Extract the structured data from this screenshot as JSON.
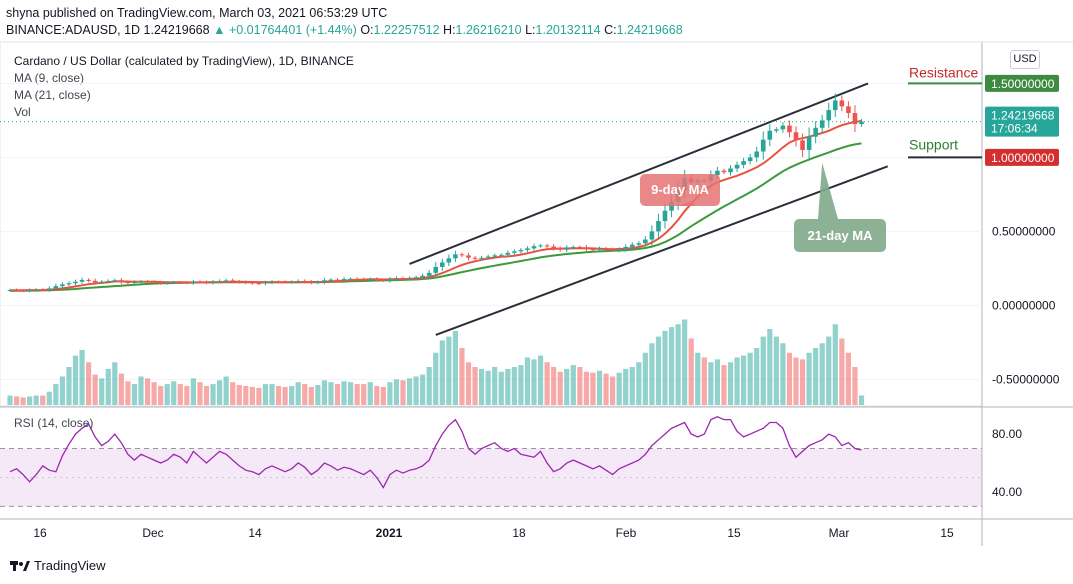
{
  "header": {
    "published": "shyna published on TradingView.com, March 03, 2021 06:53:29 UTC",
    "symbol": "BINANCE:ADAUSD, 1D",
    "last": "1.24219668",
    "change": "+0.01764401 (+1.44%)",
    "o_label": "O:",
    "o_value": "1.22257512",
    "h_label": "H:",
    "h_value": "1.26216210",
    "l_label": "L:",
    "l_value": "1.20132114",
    "c_label": "C:",
    "c_value": "1.24219668"
  },
  "legend": {
    "title": "Cardano / US Dollar (calculated by TradingView), 1D, BINANCE",
    "ma9": "MA (9, close)",
    "ma21": "MA (21, close)",
    "vol": "Vol"
  },
  "currency_button": "USD",
  "annotations": {
    "resistance": "Resistance",
    "support": "Support",
    "ma9_callout": "9-day MA",
    "ma21_callout": "21-day MA"
  },
  "price_labels": {
    "resistance_value": "1.50000000",
    "current_value": "1.24219668",
    "countdown": "17:06:34",
    "support_value": "1.00000000"
  },
  "rsi": {
    "label": "RSI (14, close)"
  },
  "brand": "TradingView",
  "colors": {
    "up": "#26a69a",
    "down": "#ef5350",
    "ma9": "#e8533f",
    "ma21": "#3c9a3c",
    "rsi": "#9c27b0",
    "rsi_band": "#9c27b0",
    "resistance": "#3d8b40",
    "support": "#d32f2f",
    "callout_red": "#e57373",
    "callout_green": "#81a98a"
  },
  "chart_data": [
    {
      "type": "candlestick",
      "title": "Cardano / US Dollar (calculated by TradingView), 1D, BINANCE",
      "x_ticks": [
        "16",
        "Dec",
        "14",
        "2021",
        "18",
        "Feb",
        "15",
        "Mar",
        "15"
      ],
      "y_ticks": [
        "0.50000000",
        "0.00000000",
        "-0.50000000"
      ],
      "ylim": [
        -0.68,
        1.78
      ],
      "resistance_level": 1.5,
      "support_level": 1.0,
      "last_price": 1.24219668,
      "closes": [
        0.104,
        0.101,
        0.099,
        0.104,
        0.107,
        0.106,
        0.115,
        0.13,
        0.142,
        0.15,
        0.16,
        0.172,
        0.166,
        0.155,
        0.16,
        0.165,
        0.17,
        0.158,
        0.152,
        0.158,
        0.162,
        0.159,
        0.155,
        0.15,
        0.153,
        0.156,
        0.155,
        0.152,
        0.16,
        0.158,
        0.154,
        0.16,
        0.165,
        0.169,
        0.162,
        0.158,
        0.154,
        0.15,
        0.148,
        0.155,
        0.16,
        0.159,
        0.157,
        0.16,
        0.165,
        0.16,
        0.154,
        0.158,
        0.17,
        0.174,
        0.172,
        0.178,
        0.18,
        0.178,
        0.175,
        0.178,
        0.172,
        0.168,
        0.178,
        0.185,
        0.182,
        0.186,
        0.19,
        0.2,
        0.22,
        0.26,
        0.29,
        0.318,
        0.345,
        0.338,
        0.322,
        0.315,
        0.322,
        0.33,
        0.338,
        0.342,
        0.355,
        0.365,
        0.374,
        0.385,
        0.4,
        0.405,
        0.398,
        0.385,
        0.376,
        0.39,
        0.395,
        0.392,
        0.38,
        0.376,
        0.384,
        0.378,
        0.372,
        0.38,
        0.395,
        0.41,
        0.42,
        0.445,
        0.5,
        0.57,
        0.64,
        0.7,
        0.78,
        0.86,
        0.83,
        0.845,
        0.84,
        0.88,
        0.91,
        0.9,
        0.925,
        0.95,
        0.975,
        1.0,
        1.04,
        1.12,
        1.18,
        1.19,
        1.215,
        1.17,
        1.115,
        1.05,
        1.14,
        1.2,
        1.25,
        1.32,
        1.385,
        1.345,
        1.3,
        1.225,
        1.242
      ],
      "ma9": [
        0.101,
        0.102,
        0.102,
        0.103,
        0.103,
        0.104,
        0.106,
        0.11,
        0.115,
        0.121,
        0.128,
        0.136,
        0.143,
        0.148,
        0.152,
        0.157,
        0.162,
        0.162,
        0.161,
        0.16,
        0.16,
        0.16,
        0.16,
        0.158,
        0.156,
        0.156,
        0.156,
        0.155,
        0.155,
        0.155,
        0.155,
        0.155,
        0.157,
        0.159,
        0.16,
        0.16,
        0.159,
        0.158,
        0.157,
        0.157,
        0.157,
        0.157,
        0.156,
        0.156,
        0.157,
        0.158,
        0.158,
        0.158,
        0.159,
        0.162,
        0.164,
        0.167,
        0.17,
        0.172,
        0.174,
        0.176,
        0.176,
        0.175,
        0.176,
        0.177,
        0.178,
        0.179,
        0.181,
        0.185,
        0.192,
        0.203,
        0.218,
        0.236,
        0.256,
        0.273,
        0.287,
        0.298,
        0.308,
        0.316,
        0.323,
        0.328,
        0.331,
        0.336,
        0.343,
        0.352,
        0.362,
        0.372,
        0.379,
        0.383,
        0.384,
        0.385,
        0.385,
        0.386,
        0.386,
        0.385,
        0.383,
        0.381,
        0.38,
        0.381,
        0.383,
        0.388,
        0.395,
        0.406,
        0.424,
        0.45,
        0.485,
        0.527,
        0.578,
        0.636,
        0.688,
        0.735,
        0.775,
        0.808,
        0.832,
        0.848,
        0.862,
        0.876,
        0.893,
        0.912,
        0.933,
        0.96,
        0.993,
        1.03,
        1.068,
        1.1,
        1.12,
        1.13,
        1.14,
        1.152,
        1.165,
        1.18,
        1.2,
        1.218,
        1.23,
        1.24,
        1.246
      ],
      "ma21": [
        0.098,
        0.099,
        0.099,
        0.1,
        0.1,
        0.101,
        0.102,
        0.104,
        0.106,
        0.108,
        0.111,
        0.115,
        0.118,
        0.121,
        0.124,
        0.127,
        0.13,
        0.133,
        0.136,
        0.139,
        0.142,
        0.145,
        0.147,
        0.149,
        0.15,
        0.151,
        0.152,
        0.153,
        0.154,
        0.155,
        0.155,
        0.156,
        0.156,
        0.157,
        0.157,
        0.157,
        0.157,
        0.157,
        0.157,
        0.157,
        0.157,
        0.157,
        0.157,
        0.157,
        0.157,
        0.157,
        0.157,
        0.157,
        0.158,
        0.159,
        0.16,
        0.161,
        0.163,
        0.164,
        0.165,
        0.167,
        0.168,
        0.169,
        0.17,
        0.171,
        0.172,
        0.174,
        0.175,
        0.178,
        0.182,
        0.188,
        0.196,
        0.205,
        0.215,
        0.225,
        0.234,
        0.243,
        0.252,
        0.26,
        0.268,
        0.276,
        0.284,
        0.292,
        0.3,
        0.308,
        0.316,
        0.324,
        0.331,
        0.337,
        0.342,
        0.347,
        0.351,
        0.355,
        0.359,
        0.362,
        0.365,
        0.367,
        0.369,
        0.371,
        0.373,
        0.377,
        0.382,
        0.388,
        0.397,
        0.41,
        0.428,
        0.45,
        0.475,
        0.505,
        0.535,
        0.563,
        0.59,
        0.617,
        0.643,
        0.668,
        0.692,
        0.716,
        0.74,
        0.765,
        0.79,
        0.818,
        0.848,
        0.878,
        0.906,
        0.93,
        0.95,
        0.968,
        0.985,
        1.002,
        1.018,
        1.034,
        1.05,
        1.065,
        1.078,
        1.088,
        1.095
      ],
      "volume_relative": [
        0.1,
        0.09,
        0.08,
        0.09,
        0.1,
        0.1,
        0.14,
        0.22,
        0.3,
        0.4,
        0.52,
        0.58,
        0.45,
        0.32,
        0.28,
        0.38,
        0.45,
        0.33,
        0.25,
        0.22,
        0.3,
        0.28,
        0.24,
        0.2,
        0.22,
        0.25,
        0.22,
        0.2,
        0.28,
        0.24,
        0.2,
        0.22,
        0.26,
        0.3,
        0.24,
        0.21,
        0.2,
        0.19,
        0.18,
        0.22,
        0.22,
        0.2,
        0.19,
        0.2,
        0.24,
        0.22,
        0.19,
        0.21,
        0.26,
        0.24,
        0.22,
        0.25,
        0.24,
        0.22,
        0.22,
        0.24,
        0.2,
        0.19,
        0.24,
        0.27,
        0.26,
        0.28,
        0.3,
        0.32,
        0.4,
        0.55,
        0.68,
        0.72,
        0.78,
        0.6,
        0.45,
        0.4,
        0.38,
        0.36,
        0.4,
        0.35,
        0.38,
        0.4,
        0.42,
        0.5,
        0.48,
        0.52,
        0.45,
        0.4,
        0.35,
        0.38,
        0.42,
        0.4,
        0.35,
        0.34,
        0.36,
        0.33,
        0.3,
        0.34,
        0.38,
        0.4,
        0.45,
        0.55,
        0.65,
        0.72,
        0.78,
        0.82,
        0.85,
        0.9,
        0.7,
        0.55,
        0.5,
        0.45,
        0.48,
        0.42,
        0.45,
        0.5,
        0.52,
        0.55,
        0.6,
        0.72,
        0.8,
        0.72,
        0.65,
        0.55,
        0.5,
        0.48,
        0.55,
        0.6,
        0.65,
        0.72,
        0.85,
        0.7,
        0.55,
        0.4,
        0.1
      ]
    },
    {
      "type": "line",
      "title": "RSI (14, close)",
      "y_ticks": [
        "80.00",
        "40.00"
      ],
      "ylim": [
        22,
        98
      ],
      "band": [
        30,
        70
      ],
      "values": [
        54,
        56,
        52,
        47,
        52,
        58,
        55,
        54,
        65,
        73,
        80,
        84,
        87,
        78,
        72,
        75,
        80,
        74,
        66,
        62,
        66,
        64,
        62,
        60,
        62,
        66,
        64,
        60,
        68,
        64,
        60,
        64,
        68,
        66,
        62,
        58,
        55,
        54,
        52,
        56,
        58,
        56,
        54,
        56,
        60,
        57,
        52,
        55,
        60,
        58,
        55,
        57,
        56,
        54,
        52,
        55,
        50,
        43,
        52,
        55,
        53,
        55,
        56,
        58,
        62,
        72,
        80,
        86,
        90,
        82,
        70,
        66,
        70,
        72,
        74,
        70,
        68,
        70,
        66,
        65,
        64,
        68,
        60,
        54,
        56,
        60,
        62,
        60,
        58,
        56,
        58,
        55,
        52,
        56,
        58,
        60,
        62,
        66,
        72,
        76,
        80,
        84,
        86,
        88,
        80,
        78,
        80,
        90,
        92,
        90,
        90,
        82,
        78,
        80,
        82,
        84,
        88,
        88,
        84,
        72,
        64,
        68,
        72,
        74,
        76,
        80,
        78,
        72,
        74,
        70,
        69
      ]
    }
  ]
}
